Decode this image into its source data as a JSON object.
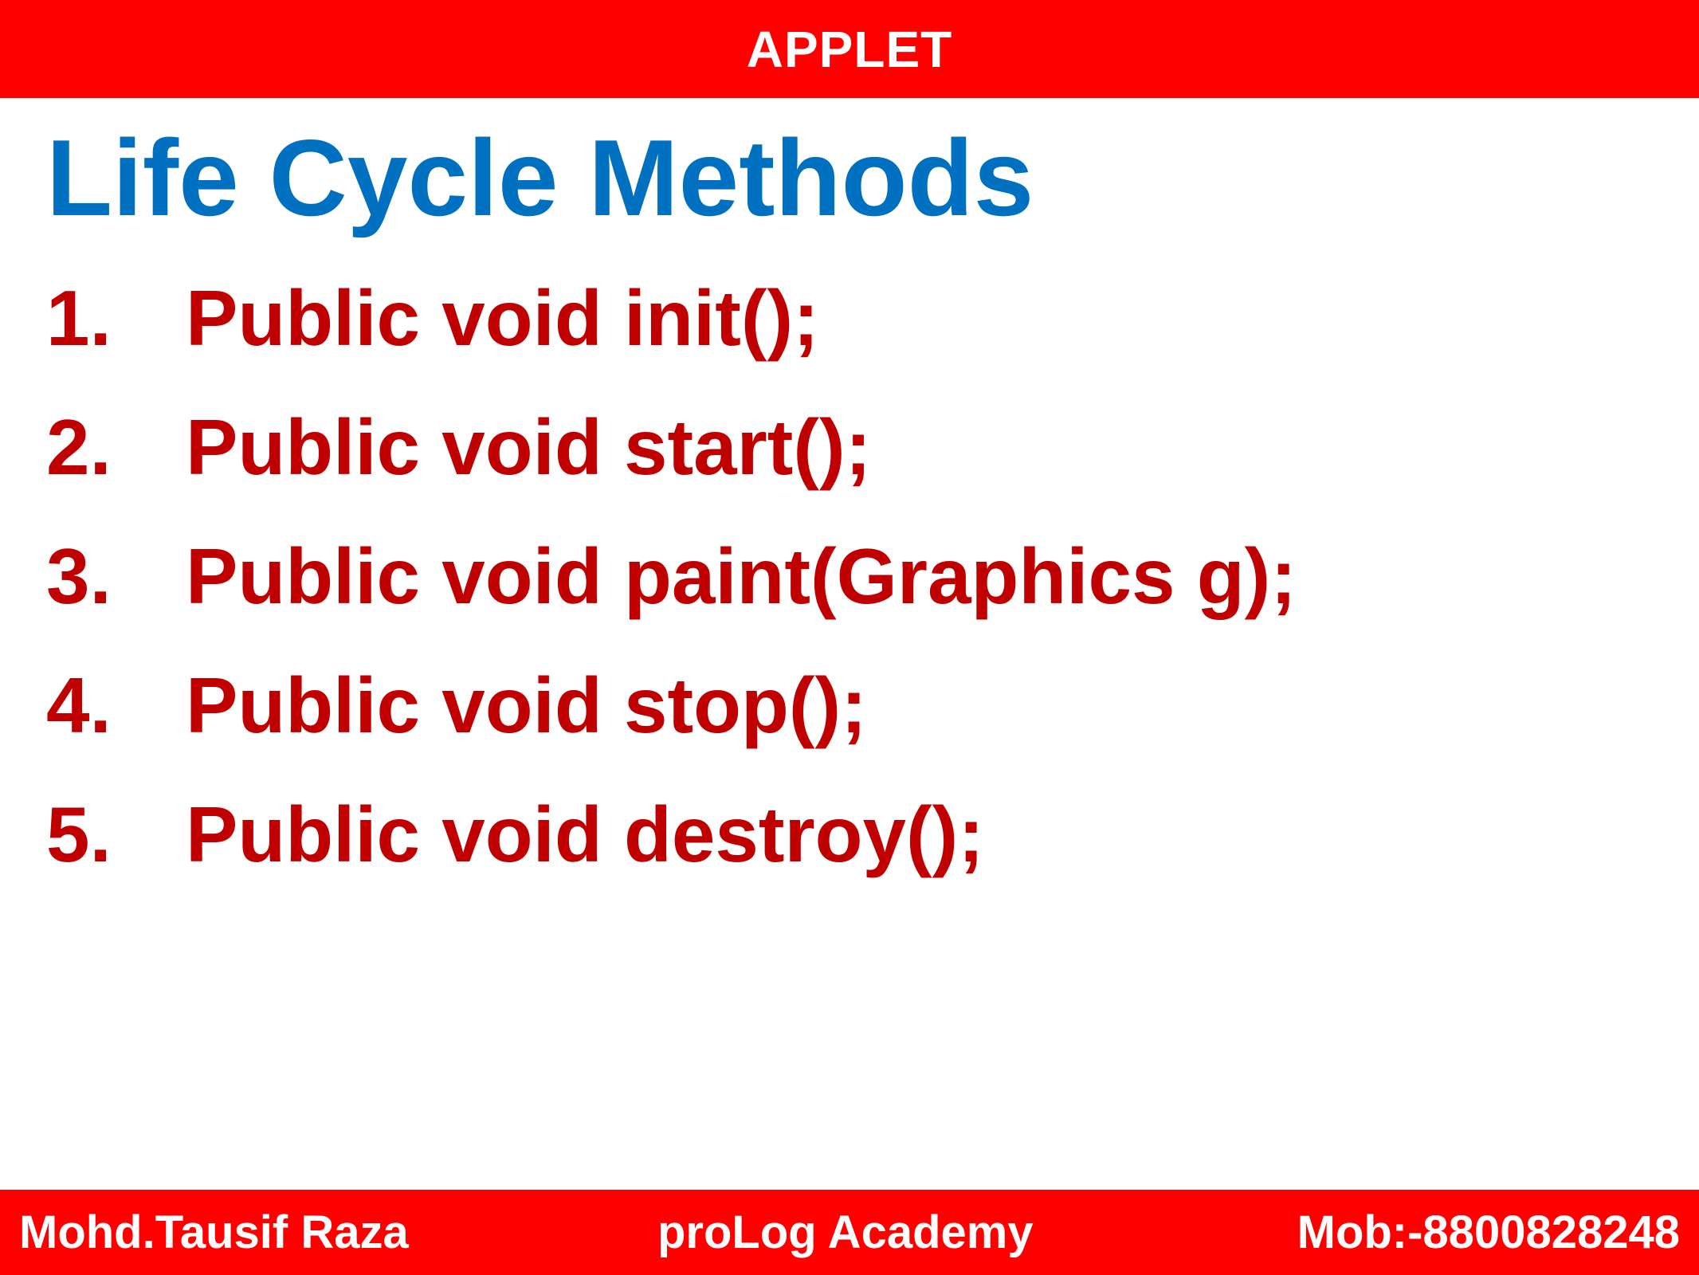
{
  "header": {
    "title": "APPLET"
  },
  "slide": {
    "heading": "Life Cycle Methods",
    "items": [
      {
        "number": "1.",
        "text": "Public void init();"
      },
      {
        "number": "2.",
        "text": "Public void start();"
      },
      {
        "number": "3.",
        "text": "Public void paint(Graphics g);"
      },
      {
        "number": "4.",
        "text": "Public void stop();"
      },
      {
        "number": "5.",
        "text": "Public void destroy();"
      }
    ]
  },
  "footer": {
    "author": "Mohd.Tausif Raza",
    "academy": "proLog Academy",
    "mobile": "Mob:-8800828248"
  },
  "colors": {
    "bar_red": "#ff0000",
    "heading_blue": "#0070c0",
    "item_dark_red": "#c00000",
    "bar_text_white": "#ffffff",
    "background_white": "#ffffff"
  }
}
